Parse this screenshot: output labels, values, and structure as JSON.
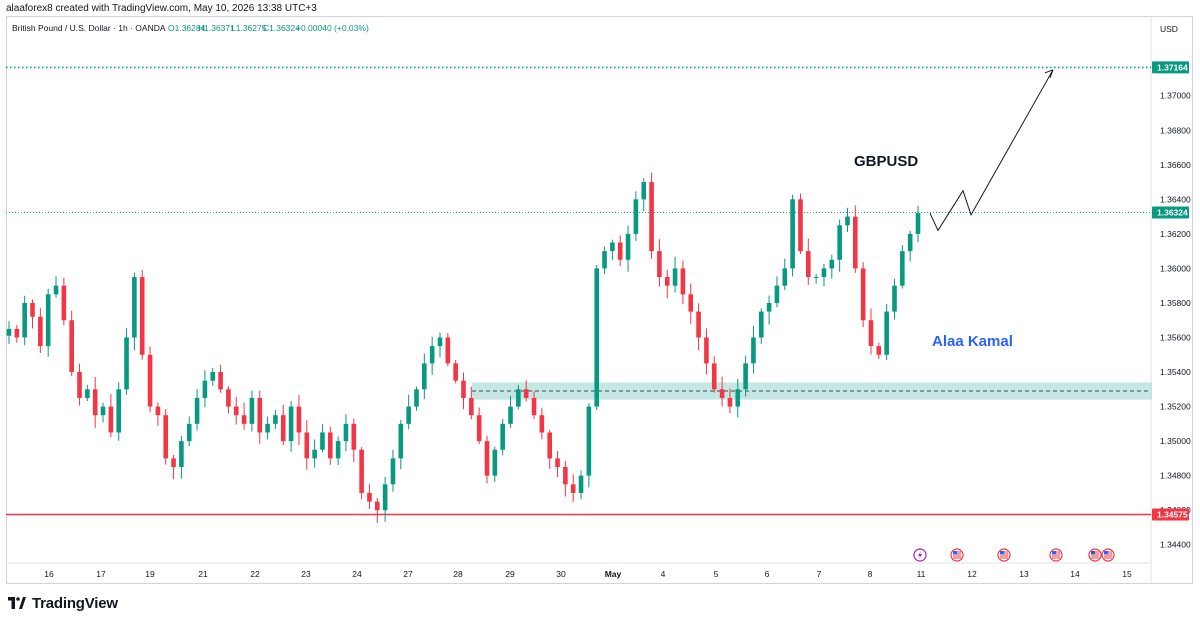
{
  "header": {
    "author_line": "alaaforex8 created with TradingView.com, May 10, 2026 13:38 UTC+3"
  },
  "footer": {
    "brand": "TradingView",
    "logo_icon": "tradingview-logo-icon"
  },
  "chart_data": {
    "type": "candlestick",
    "symbol_line": {
      "name": "British Pound / U.S. Dollar · 1h · OANDA",
      "open": "O1.36284",
      "high": "H1.36371",
      "low": "L1.36275",
      "close": "C1.36324",
      "change": "+0.00040 (+0.03%)"
    },
    "currency": "USD",
    "y_ticks": [
      "1.37000",
      "1.36800",
      "1.36600",
      "1.36400",
      "1.36200",
      "1.36000",
      "1.35800",
      "1.35600",
      "1.35400",
      "1.35200",
      "1.35000",
      "1.34800",
      "1.34600",
      "1.34400"
    ],
    "x_ticks": [
      "16",
      "17",
      "19",
      "21",
      "22",
      "23",
      "24",
      "27",
      "28",
      "29",
      "30",
      "May",
      "4",
      "5",
      "6",
      "7",
      "8",
      "11",
      "12",
      "13",
      "14",
      "15"
    ],
    "ylim": [
      1.343,
      1.3745
    ],
    "price_levels": [
      {
        "label": "1.37164",
        "value": 1.37164,
        "color": "#089981",
        "style": "dotted"
      },
      {
        "label": "1.36324",
        "value": 1.36324,
        "color": "#089981",
        "style": "last-price"
      },
      {
        "label": "1.34575",
        "value": 1.34575,
        "color": "#f23645",
        "style": "solid"
      }
    ],
    "support_zone": {
      "low": 1.3524,
      "high": 1.3534,
      "midline": 1.3529,
      "color": "#b2dfdb"
    },
    "annotations": {
      "title": "GBPUSD",
      "author_name": "Alaa Kamal",
      "author_color": "#2962ff",
      "projection_path": [
        [
          1.3632,
          1.3622
        ],
        [
          1.3638,
          1.3645
        ],
        [
          1.3642,
          1.3631
        ],
        [
          1.3648,
          1.3715
        ]
      ]
    },
    "event_icons": [
      "lightning-icon",
      "us-flag-icon",
      "us-flag-icon",
      "us-flag-icon",
      "gb-flag-icon",
      "us-flag-icon"
    ],
    "up_color": "#089981",
    "down_color": "#f23645",
    "candles_approx": [
      1.3565,
      1.356,
      1.358,
      1.3572,
      1.3555,
      1.3585,
      1.359,
      1.357,
      1.354,
      1.3525,
      1.353,
      1.3515,
      1.352,
      1.3505,
      1.353,
      1.356,
      1.3595,
      1.355,
      1.352,
      1.3515,
      1.349,
      1.3485,
      1.35,
      1.351,
      1.3525,
      1.3535,
      1.354,
      1.353,
      1.352,
      1.3515,
      1.351,
      1.3525,
      1.3505,
      1.351,
      1.3515,
      1.35,
      1.352,
      1.3505,
      1.349,
      1.3495,
      1.3505,
      1.349,
      1.35,
      1.351,
      1.3495,
      1.347,
      1.3465,
      1.346,
      1.3475,
      1.349,
      1.351,
      1.352,
      1.353,
      1.3545,
      1.3555,
      1.356,
      1.3545,
      1.3535,
      1.3525,
      1.3515,
      1.35,
      1.348,
      1.3495,
      1.351,
      1.352,
      1.353,
      1.3525,
      1.3515,
      1.3505,
      1.349,
      1.3485,
      1.3475,
      1.347,
      1.348,
      1.352,
      1.36,
      1.361,
      1.3615,
      1.3605,
      1.362,
      1.364,
      1.365,
      1.361,
      1.3595,
      1.359,
      1.36,
      1.3585,
      1.3575,
      1.356,
      1.3545,
      1.353,
      1.3525,
      1.352,
      1.353,
      1.3545,
      1.356,
      1.3575,
      1.358,
      1.359,
      1.36,
      1.364,
      1.361,
      1.3595,
      1.3595,
      1.36,
      1.3605,
      1.3625,
      1.363,
      1.36,
      1.357,
      1.3555,
      1.355,
      1.3575,
      1.359,
      1.361,
      1.362,
      1.3632
    ]
  }
}
